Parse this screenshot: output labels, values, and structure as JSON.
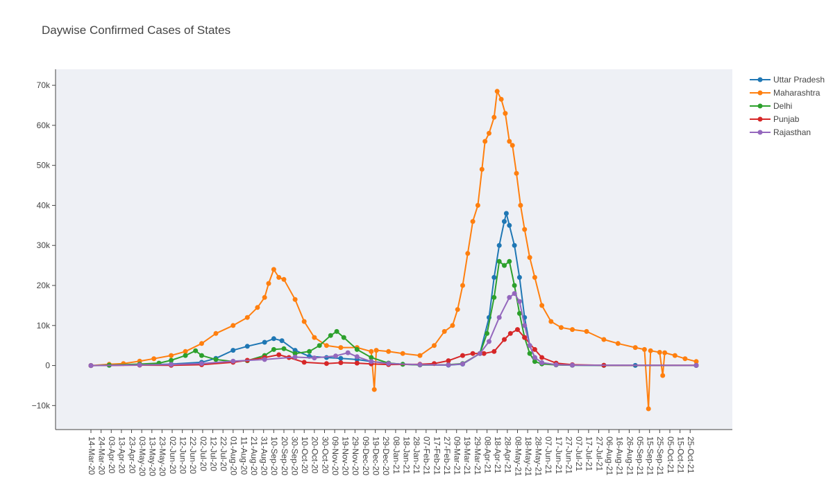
{
  "chart_data": {
    "type": "line",
    "title": "Daywise Confirmed Cases of States",
    "xlabel": "",
    "ylabel": "",
    "x_start": "14-Mar-20",
    "x_end": "31-Oct-21",
    "ylim": [
      -16000,
      74000
    ],
    "yticks": [
      -10000,
      0,
      10000,
      20000,
      30000,
      40000,
      50000,
      60000,
      70000
    ],
    "ytick_labels": [
      "−10k",
      "0",
      "10k",
      "20k",
      "30k",
      "40k",
      "50k",
      "60k",
      "70k"
    ],
    "xtick_labels": [
      "14-Mar-20",
      "24-Mar-20",
      "03-Apr-20",
      "13-Apr-20",
      "23-Apr-20",
      "03-May-20",
      "13-May-20",
      "23-May-20",
      "02-Jun-20",
      "12-Jun-20",
      "22-Jun-20",
      "02-Jul-20",
      "12-Jul-20",
      "22-Jul-20",
      "01-Aug-20",
      "11-Aug-20",
      "21-Aug-20",
      "31-Aug-20",
      "10-Sep-20",
      "20-Sep-20",
      "30-Sep-20",
      "10-Oct-20",
      "20-Oct-20",
      "30-Oct-20",
      "09-Nov-20",
      "19-Nov-20",
      "29-Nov-20",
      "09-Dec-20",
      "19-Dec-20",
      "29-Dec-20",
      "08-Jan-21",
      "18-Jan-21",
      "28-Jan-21",
      "07-Feb-21",
      "17-Feb-21",
      "27-Feb-21",
      "09-Mar-21",
      "19-Mar-21",
      "29-Mar-21",
      "08-Apr-21",
      "18-Apr-21",
      "28-Apr-21",
      "08-May-21",
      "18-May-21",
      "28-May-21",
      "07-Jun-21",
      "17-Jun-21",
      "27-Jun-21",
      "07-Jul-21",
      "17-Jul-21",
      "27-Jul-21",
      "06-Aug-21",
      "16-Aug-21",
      "26-Aug-21",
      "05-Sep-21",
      "15-Sep-21",
      "25-Sep-21",
      "05-Oct-21",
      "15-Oct-21",
      "25-Oct-21"
    ],
    "grid": false,
    "legend_position": "top-right",
    "series": [
      {
        "name": "Uttar Pradesh",
        "color": "#1f77b4",
        "points": [
          [
            "14-Mar-20",
            0
          ],
          [
            "01-Apr-20",
            50
          ],
          [
            "01-May-20",
            150
          ],
          [
            "01-Jun-20",
            350
          ],
          [
            "01-Jul-20",
            800
          ],
          [
            "15-Jul-20",
            1800
          ],
          [
            "01-Aug-20",
            3800
          ],
          [
            "15-Aug-20",
            4800
          ],
          [
            "01-Sep-20",
            5800
          ],
          [
            "10-Sep-20",
            6700
          ],
          [
            "18-Sep-20",
            6200
          ],
          [
            "01-Oct-20",
            3800
          ],
          [
            "15-Oct-20",
            2300
          ],
          [
            "01-Nov-20",
            2000
          ],
          [
            "15-Nov-20",
            1800
          ],
          [
            "01-Dec-20",
            1500
          ],
          [
            "15-Dec-20",
            1000
          ],
          [
            "01-Jan-21",
            600
          ],
          [
            "15-Jan-21",
            300
          ],
          [
            "01-Feb-21",
            150
          ],
          [
            "01-Mar-21",
            100
          ],
          [
            "15-Mar-21",
            350
          ],
          [
            "01-Apr-21",
            3000
          ],
          [
            "10-Apr-21",
            12000
          ],
          [
            "15-Apr-21",
            22000
          ],
          [
            "20-Apr-21",
            30000
          ],
          [
            "25-Apr-21",
            36000
          ],
          [
            "27-Apr-21",
            38000
          ],
          [
            "30-Apr-21",
            35000
          ],
          [
            "05-May-21",
            30000
          ],
          [
            "10-May-21",
            22000
          ],
          [
            "15-May-21",
            12000
          ],
          [
            "20-May-21",
            5000
          ],
          [
            "25-May-21",
            2000
          ],
          [
            "01-Jun-21",
            700
          ],
          [
            "15-Jun-21",
            200
          ],
          [
            "01-Jul-21",
            80
          ],
          [
            "01-Aug-21",
            30
          ],
          [
            "01-Sep-21",
            20
          ],
          [
            "31-Oct-21",
            10
          ]
        ]
      },
      {
        "name": "Maharashtra",
        "color": "#ff7f0e",
        "points": [
          [
            "14-Mar-20",
            0
          ],
          [
            "01-Apr-20",
            300
          ],
          [
            "15-Apr-20",
            500
          ],
          [
            "01-May-20",
            1100
          ],
          [
            "15-May-20",
            1700
          ],
          [
            "01-Jun-20",
            2500
          ],
          [
            "15-Jun-20",
            3500
          ],
          [
            "01-Jul-20",
            5500
          ],
          [
            "15-Jul-20",
            8000
          ],
          [
            "01-Aug-20",
            10000
          ],
          [
            "15-Aug-20",
            12000
          ],
          [
            "25-Aug-20",
            14500
          ],
          [
            "01-Sep-20",
            17000
          ],
          [
            "05-Sep-20",
            20500
          ],
          [
            "10-Sep-20",
            24000
          ],
          [
            "15-Sep-20",
            22000
          ],
          [
            "20-Sep-20",
            21500
          ],
          [
            "01-Oct-20",
            16500
          ],
          [
            "10-Oct-20",
            11000
          ],
          [
            "20-Oct-20",
            7000
          ],
          [
            "01-Nov-20",
            5000
          ],
          [
            "15-Nov-20",
            4500
          ],
          [
            "01-Dec-20",
            4500
          ],
          [
            "15-Dec-20",
            3500
          ],
          [
            "18-Dec-20",
            -6000
          ],
          [
            "20-Dec-20",
            3800
          ],
          [
            "01-Jan-21",
            3500
          ],
          [
            "15-Jan-21",
            3000
          ],
          [
            "01-Feb-21",
            2500
          ],
          [
            "15-Feb-21",
            5000
          ],
          [
            "25-Feb-21",
            8500
          ],
          [
            "05-Mar-21",
            10000
          ],
          [
            "10-Mar-21",
            14000
          ],
          [
            "15-Mar-21",
            20000
          ],
          [
            "20-Mar-21",
            28000
          ],
          [
            "25-Mar-21",
            36000
          ],
          [
            "30-Mar-21",
            40000
          ],
          [
            "03-Apr-21",
            49000
          ],
          [
            "06-Apr-21",
            56000
          ],
          [
            "10-Apr-21",
            58000
          ],
          [
            "15-Apr-21",
            62000
          ],
          [
            "18-Apr-21",
            68500
          ],
          [
            "22-Apr-21",
            66500
          ],
          [
            "26-Apr-21",
            63000
          ],
          [
            "30-Apr-21",
            56000
          ],
          [
            "03-May-21",
            55000
          ],
          [
            "07-May-21",
            48000
          ],
          [
            "11-May-21",
            40000
          ],
          [
            "15-May-21",
            34000
          ],
          [
            "20-May-21",
            27000
          ],
          [
            "25-May-21",
            22000
          ],
          [
            "01-Jun-21",
            15000
          ],
          [
            "10-Jun-21",
            11000
          ],
          [
            "20-Jun-21",
            9500
          ],
          [
            "01-Jul-21",
            9000
          ],
          [
            "15-Jul-21",
            8500
          ],
          [
            "01-Aug-21",
            6500
          ],
          [
            "15-Aug-21",
            5500
          ],
          [
            "01-Sep-21",
            4500
          ],
          [
            "10-Sep-21",
            4000
          ],
          [
            "14-Sep-21",
            -10800
          ],
          [
            "16-Sep-21",
            3700
          ],
          [
            "25-Sep-21",
            3300
          ],
          [
            "28-Sep-21",
            -2500
          ],
          [
            "30-Sep-21",
            3200
          ],
          [
            "10-Oct-21",
            2500
          ],
          [
            "20-Oct-21",
            1700
          ],
          [
            "31-Oct-21",
            1000
          ]
        ]
      },
      {
        "name": "Delhi",
        "color": "#2ca02c",
        "points": [
          [
            "14-Mar-20",
            0
          ],
          [
            "01-Apr-20",
            100
          ],
          [
            "01-May-20",
            350
          ],
          [
            "20-May-20",
            600
          ],
          [
            "01-Jun-20",
            1300
          ],
          [
            "15-Jun-20",
            2500
          ],
          [
            "25-Jun-20",
            3700
          ],
          [
            "01-Jul-20",
            2500
          ],
          [
            "15-Jul-20",
            1500
          ],
          [
            "01-Aug-20",
            1000
          ],
          [
            "15-Aug-20",
            1200
          ],
          [
            "01-Sep-20",
            2500
          ],
          [
            "10-Sep-20",
            4000
          ],
          [
            "20-Sep-20",
            4200
          ],
          [
            "01-Oct-20",
            3000
          ],
          [
            "15-Oct-20",
            3500
          ],
          [
            "25-Oct-20",
            5000
          ],
          [
            "05-Nov-20",
            7500
          ],
          [
            "11-Nov-20",
            8500
          ],
          [
            "18-Nov-20",
            7000
          ],
          [
            "01-Dec-20",
            4000
          ],
          [
            "15-Dec-20",
            2000
          ],
          [
            "01-Jan-21",
            600
          ],
          [
            "15-Jan-21",
            300
          ],
          [
            "01-Feb-21",
            150
          ],
          [
            "01-Mar-21",
            200
          ],
          [
            "15-Mar-21",
            500
          ],
          [
            "01-Apr-21",
            3000
          ],
          [
            "08-Apr-21",
            8000
          ],
          [
            "15-Apr-21",
            17000
          ],
          [
            "20-Apr-21",
            26000
          ],
          [
            "25-Apr-21",
            25000
          ],
          [
            "30-Apr-21",
            26000
          ],
          [
            "05-May-21",
            20000
          ],
          [
            "10-May-21",
            13000
          ],
          [
            "15-May-21",
            7000
          ],
          [
            "20-May-21",
            3000
          ],
          [
            "25-May-21",
            1000
          ],
          [
            "01-Jun-21",
            400
          ],
          [
            "15-Jun-21",
            150
          ],
          [
            "01-Jul-21",
            80
          ],
          [
            "01-Aug-21",
            50
          ],
          [
            "31-Oct-21",
            30
          ]
        ]
      },
      {
        "name": "Punjab",
        "color": "#d62728",
        "points": [
          [
            "14-Mar-20",
            0
          ],
          [
            "01-May-20",
            100
          ],
          [
            "01-Jun-20",
            50
          ],
          [
            "01-Jul-20",
            200
          ],
          [
            "01-Aug-20",
            800
          ],
          [
            "15-Aug-20",
            1300
          ],
          [
            "01-Sep-20",
            2000
          ],
          [
            "15-Sep-20",
            2700
          ],
          [
            "25-Sep-20",
            2000
          ],
          [
            "10-Oct-20",
            800
          ],
          [
            "01-Nov-20",
            500
          ],
          [
            "15-Nov-20",
            700
          ],
          [
            "01-Dec-20",
            600
          ],
          [
            "15-Dec-20",
            400
          ],
          [
            "01-Jan-21",
            250
          ],
          [
            "01-Feb-21",
            300
          ],
          [
            "15-Feb-21",
            500
          ],
          [
            "01-Mar-21",
            1200
          ],
          [
            "15-Mar-21",
            2500
          ],
          [
            "25-Mar-21",
            3000
          ],
          [
            "05-Apr-21",
            3000
          ],
          [
            "15-Apr-21",
            3500
          ],
          [
            "25-Apr-21",
            6500
          ],
          [
            "01-May-21",
            8000
          ],
          [
            "08-May-21",
            9000
          ],
          [
            "15-May-21",
            7000
          ],
          [
            "25-May-21",
            4000
          ],
          [
            "01-Jun-21",
            2000
          ],
          [
            "15-Jun-21",
            600
          ],
          [
            "01-Jul-21",
            200
          ],
          [
            "01-Aug-21",
            60
          ],
          [
            "31-Oct-21",
            40
          ]
        ]
      },
      {
        "name": "Rajasthan",
        "color": "#9467bd",
        "points": [
          [
            "14-Mar-20",
            0
          ],
          [
            "01-May-20",
            150
          ],
          [
            "01-Jun-20",
            250
          ],
          [
            "01-Jul-20",
            500
          ],
          [
            "01-Aug-20",
            1100
          ],
          [
            "01-Sep-20",
            1500
          ],
          [
            "01-Oct-20",
            2100
          ],
          [
            "20-Oct-20",
            1900
          ],
          [
            "10-Nov-20",
            2400
          ],
          [
            "22-Nov-20",
            3200
          ],
          [
            "01-Dec-20",
            2200
          ],
          [
            "15-Dec-20",
            1000
          ],
          [
            "01-Jan-21",
            500
          ],
          [
            "01-Feb-21",
            200
          ],
          [
            "01-Mar-21",
            150
          ],
          [
            "15-Mar-21",
            400
          ],
          [
            "01-Apr-21",
            3000
          ],
          [
            "10-Apr-21",
            6000
          ],
          [
            "20-Apr-21",
            12000
          ],
          [
            "30-Apr-21",
            17000
          ],
          [
            "05-May-21",
            18000
          ],
          [
            "10-May-21",
            16000
          ],
          [
            "15-May-21",
            10000
          ],
          [
            "20-May-21",
            5000
          ],
          [
            "25-May-21",
            2000
          ],
          [
            "01-Jun-21",
            700
          ],
          [
            "15-Jun-21",
            200
          ],
          [
            "01-Jul-21",
            100
          ],
          [
            "31-Oct-21",
            20
          ]
        ]
      }
    ]
  }
}
